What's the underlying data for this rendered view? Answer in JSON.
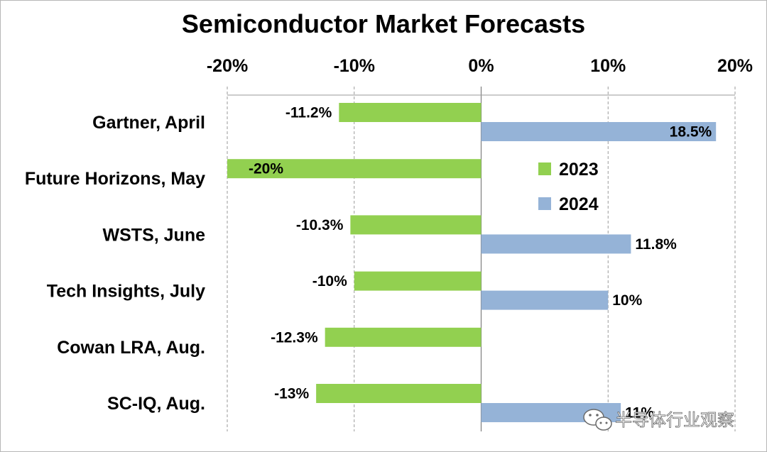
{
  "chart_data": {
    "type": "bar",
    "orientation": "horizontal",
    "title": "Semiconductor Market Forecasts",
    "xlim": [
      -20,
      20
    ],
    "x_ticks": [
      "-20%",
      "-10%",
      "0%",
      "10%",
      "20%"
    ],
    "x_tick_values": [
      -20,
      -10,
      0,
      10,
      20
    ],
    "x_axis_position": "top",
    "grid": "vertical dashed",
    "categories": [
      "Gartner, April",
      "Future Horizons, May",
      "WSTS, June",
      "Tech Insights, July",
      "Cowan LRA, Aug.",
      "SC-IQ, Aug."
    ],
    "series": [
      {
        "name": "2023",
        "color": "#92d050",
        "values": [
          -11.2,
          -20,
          -10.3,
          -10,
          -12.3,
          -13
        ],
        "labels": [
          "-11.2%",
          "-20%",
          "-10.3%",
          "-10%",
          "-12.3%",
          "-13%"
        ]
      },
      {
        "name": "2024",
        "color": "#95b3d7",
        "values": [
          18.5,
          null,
          11.8,
          10,
          null,
          11
        ],
        "labels": [
          "18.5%",
          "",
          "11.8%",
          "10%",
          "",
          "11%"
        ]
      }
    ],
    "legend_position": "right-center"
  },
  "watermark": {
    "text": "半导体行业观察",
    "icon": "wechat-icon"
  }
}
